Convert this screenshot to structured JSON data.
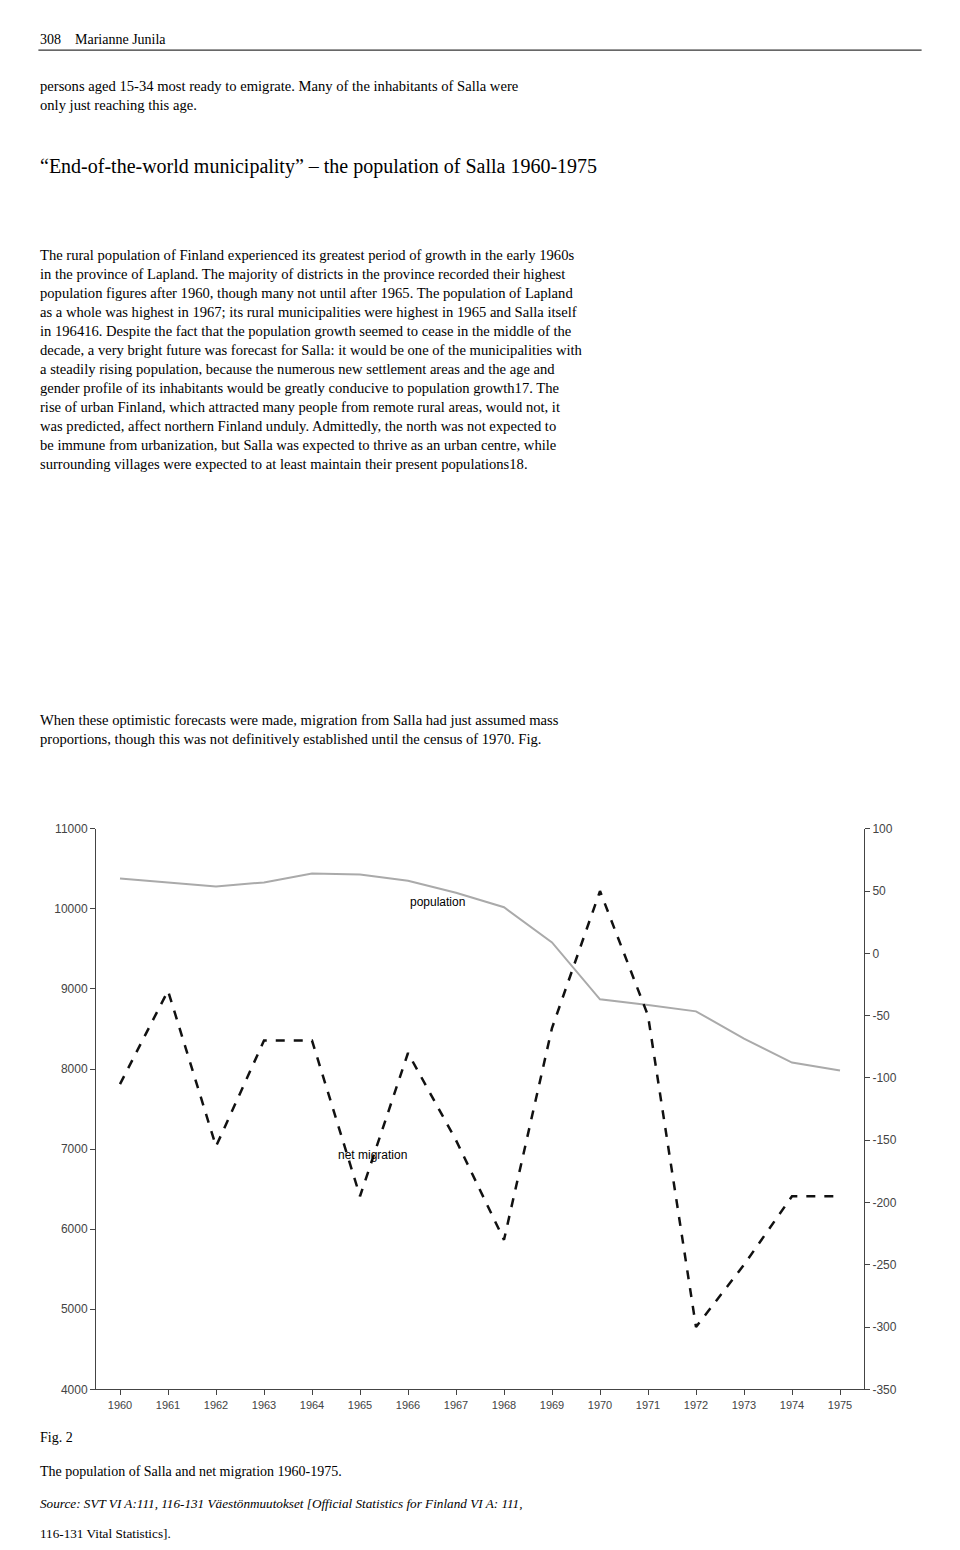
{
  "chart_data": {
    "type": "line",
    "title": "“End-of-the-world municipality” – the population of Salla 1960-1975",
    "x": [
      1960,
      1961,
      1962,
      1963,
      1964,
      1965,
      1966,
      1967,
      1968,
      1969,
      1970,
      1971,
      1972,
      1973,
      1974,
      1975
    ],
    "xlim": [
      1959.5,
      1975.5
    ],
    "xticks": [
      1960,
      1961,
      1962,
      1963,
      1964,
      1965,
      1966,
      1967,
      1968,
      1969,
      1970,
      1971,
      1972,
      1973,
      1974,
      1975
    ],
    "ylim": [
      4000,
      11000
    ],
    "yticks": [
      4000,
      5000,
      6000,
      7000,
      8000,
      9000,
      10000,
      11000
    ],
    "y2lim": [
      -350,
      100
    ],
    "y2ticks": [
      -350,
      -300,
      -250,
      -200,
      -150,
      -100,
      -50,
      0,
      50,
      100
    ],
    "grid": false,
    "series": [
      {
        "name": "population",
        "color": "#aaaaaa",
        "line_style": "solid",
        "values": [
          10380,
          10330,
          10280,
          10330,
          10440,
          10430,
          10350,
          10200,
          10020,
          9580,
          8870,
          8800,
          8720,
          8380,
          8080,
          7980
        ]
      },
      {
        "name": "net migration",
        "color": "#111111",
        "line_style": "dashed",
        "axis": "y2",
        "values": [
          -105,
          -30,
          -155,
          -70,
          -70,
          -195,
          -80,
          -150,
          -230,
          -60,
          50,
          -50,
          -300,
          -250,
          -195,
          -195
        ]
      }
    ],
    "annotations": [
      {
        "text": "population",
        "x": 1966,
        "y": 10200
      },
      {
        "text": "net migration",
        "x": 1964.5,
        "y": -155,
        "axis": "y2"
      },
      {
        "text": "308    Marianne Junila"
      },
      {
        "text": "persons aged 15-34 most ready to emigrate. Many of the inhabitants of Salla were\nonly just reaching this age."
      },
      {
        "text": "The rural population of Finland experienced its greatest period of growth in the early 1960s\nin the province of Lapland. The majority of districts in the province recorded their highest\npopulation figures after 1960, though many not until after 1965. The population of Lapland\nas a whole was highest in 1967; its rural municipalities were highest in 1965 and Salla itself\nin 196416. Despite the fact that the population growth seemed to cease in the middle of the\ndecade, a very bright future was forecast for Salla: it would be one of the municipalities with\na steadily rising population, because the numerous new settlement areas and the age and\ngender profile of its inhabitants would be greatly conducive to population growth17. The\nrise of urban Finland, which attracted many people from remote rural areas, would not, it\nwas predicted, affect northern Finland unduly. Admittedly, the north was not expected to\nbe immune from urbanization, but Salla was expected to thrive as an urban centre, while\nsurrounding villages were expected to at least maintain their present populations18."
      },
      {
        "text": "When these optimistic forecasts were made, migration from Salla had just assumed mass\nproportions, though this was not definitively established until the census of 1970. Fig."
      },
      {
        "text": "Fig. 2"
      },
      {
        "text": "The population of Salla and net migration 1960-1975."
      },
      {
        "text": "Source: SVT VI A:111, 116-131 Väestönmuutokset [Official Statistics for Finland VI A: 111,"
      },
      {
        "text": "116-131 Vital Statistics]."
      }
    ]
  }
}
